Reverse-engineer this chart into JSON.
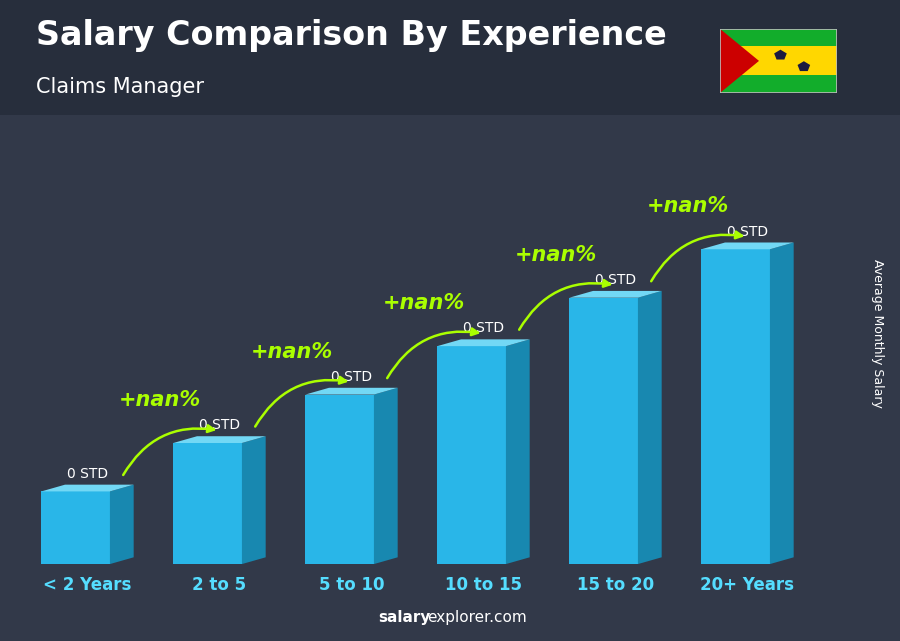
{
  "title": "Salary Comparison By Experience",
  "subtitle": "Claims Manager",
  "categories": [
    "< 2 Years",
    "2 to 5",
    "5 to 10",
    "10 to 15",
    "15 to 20",
    "20+ Years"
  ],
  "values": [
    1.5,
    2.5,
    3.5,
    4.5,
    5.5,
    6.5
  ],
  "bar_color_face": "#29b6e8",
  "bar_color_top": "#72d8f5",
  "bar_color_side": "#1888b0",
  "bar_labels": [
    "0 STD",
    "0 STD",
    "0 STD",
    "0 STD",
    "0 STD",
    "0 STD"
  ],
  "increase_labels": [
    "+nan%",
    "+nan%",
    "+nan%",
    "+nan%",
    "+nan%"
  ],
  "ylabel": "Average Monthly Salary",
  "title_color": "#ffffff",
  "subtitle_color": "#ffffff",
  "category_color": "#55ddff",
  "bar_label_color": "#ffffff",
  "increase_color": "#aaff00",
  "bg_color": "#3a4050",
  "title_fontsize": 24,
  "subtitle_fontsize": 15,
  "ylabel_fontsize": 9,
  "bar_label_fontsize": 10,
  "increase_fontsize": 15,
  "category_fontsize": 12,
  "watermark_fontsize": 11
}
